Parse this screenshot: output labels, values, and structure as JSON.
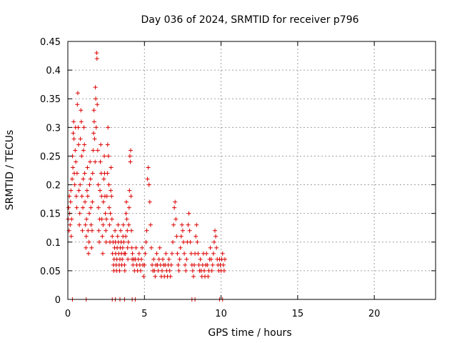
{
  "chart_data": {
    "type": "scatter",
    "title": "Day 036 of 2024, SRMTID for receiver p796",
    "xlabel": "GPS time / hours",
    "ylabel": "SRMTID / TECUs",
    "xlim": [
      0,
      24
    ],
    "ylim": [
      0,
      0.45
    ],
    "xticks": [
      0,
      5,
      10,
      15,
      20
    ],
    "yticks": [
      0,
      0.05,
      0.1,
      0.15,
      0.2,
      0.25,
      0.3,
      0.35,
      0.4,
      0.45
    ],
    "xtick_labels": [
      "0",
      "5",
      "10",
      "15",
      "20"
    ],
    "ytick_labels": [
      "0",
      "0.05",
      "0.1",
      "0.15",
      "0.2",
      "0.25",
      "0.3",
      "0.35",
      "0.4",
      "0.45"
    ],
    "grid": true,
    "marker": "+",
    "color": "#dd0000",
    "series": [
      {
        "name": "SRMTID",
        "points": [
          [
            0.02,
            0.14
          ],
          [
            0.05,
            0.16
          ],
          [
            0.08,
            0.12
          ],
          [
            0.1,
            0.18
          ],
          [
            0.12,
            0.15
          ],
          [
            0.15,
            0.13
          ],
          [
            0.18,
            0.17
          ],
          [
            0.2,
            0.19
          ],
          [
            0.22,
            0.11
          ],
          [
            0.25,
            0.14
          ],
          [
            0.28,
            0.21
          ],
          [
            0.3,
            0.25
          ],
          [
            0.33,
            0.23
          ],
          [
            0.35,
            0.29
          ],
          [
            0.38,
            0.31
          ],
          [
            0.4,
            0.28
          ],
          [
            0.42,
            0.22
          ],
          [
            0.45,
            0.2
          ],
          [
            0.48,
            0.26
          ],
          [
            0.5,
            0.3
          ],
          [
            0.52,
            0.24
          ],
          [
            0.55,
            0.18
          ],
          [
            0.58,
            0.16
          ],
          [
            0.6,
            0.22
          ],
          [
            0.62,
            0.34
          ],
          [
            0.65,
            0.36
          ],
          [
            0.68,
            0.3
          ],
          [
            0.7,
            0.27
          ],
          [
            0.72,
            0.19
          ],
          [
            0.75,
            0.13
          ],
          [
            0.78,
            0.15
          ],
          [
            0.8,
            0.2
          ],
          [
            0.82,
            0.28
          ],
          [
            0.85,
            0.33
          ],
          [
            0.88,
            0.31
          ],
          [
            0.9,
            0.25
          ],
          [
            0.92,
            0.18
          ],
          [
            0.95,
            0.12
          ],
          [
            0.98,
            0.16
          ],
          [
            1.0,
            0.21
          ],
          [
            1.02,
            0.26
          ],
          [
            1.05,
            0.3
          ],
          [
            1.08,
            0.27
          ],
          [
            1.1,
            0.22
          ],
          [
            1.12,
            0.17
          ],
          [
            1.15,
            0.13
          ],
          [
            1.18,
            0.09
          ],
          [
            1.2,
            0.11
          ],
          [
            1.22,
            0.14
          ],
          [
            1.25,
            0.19
          ],
          [
            1.28,
            0.23
          ],
          [
            1.3,
            0.18
          ],
          [
            1.32,
            0.12
          ],
          [
            1.35,
            0.08
          ],
          [
            1.38,
            0.1
          ],
          [
            1.4,
            0.15
          ],
          [
            1.42,
            0.2
          ],
          [
            1.45,
            0.24
          ],
          [
            1.48,
            0.21
          ],
          [
            1.5,
            0.16
          ],
          [
            1.52,
            0.13
          ],
          [
            1.55,
            0.09
          ],
          [
            1.58,
            0.12
          ],
          [
            1.6,
            0.17
          ],
          [
            1.62,
            0.22
          ],
          [
            1.65,
            0.26
          ],
          [
            1.68,
            0.29
          ],
          [
            1.7,
            0.33
          ],
          [
            1.72,
            0.31
          ],
          [
            1.75,
            0.28
          ],
          [
            1.78,
            0.24
          ],
          [
            1.8,
            0.37
          ],
          [
            1.82,
            0.35
          ],
          [
            1.85,
            0.3
          ],
          [
            1.88,
            0.43
          ],
          [
            1.9,
            0.42
          ],
          [
            1.92,
            0.34
          ],
          [
            1.95,
            0.26
          ],
          [
            1.98,
            0.2
          ],
          [
            2.0,
            0.16
          ],
          [
            2.02,
            0.12
          ],
          [
            2.05,
            0.1
          ],
          [
            2.08,
            0.14
          ],
          [
            2.1,
            0.19
          ],
          [
            2.12,
            0.24
          ],
          [
            2.15,
            0.27
          ],
          [
            2.18,
            0.22
          ],
          [
            2.2,
            0.18
          ],
          [
            2.22,
            0.14
          ],
          [
            2.25,
            0.11
          ],
          [
            2.28,
            0.08
          ],
          [
            2.3,
            0.13
          ],
          [
            2.32,
            0.17
          ],
          [
            2.35,
            0.21
          ],
          [
            2.38,
            0.25
          ],
          [
            2.4,
            0.22
          ],
          [
            2.42,
            0.18
          ],
          [
            2.45,
            0.15
          ],
          [
            2.48,
            0.12
          ],
          [
            2.5,
            0.1
          ],
          [
            2.52,
            0.14
          ],
          [
            2.55,
            0.18
          ],
          [
            2.58,
            0.22
          ],
          [
            2.6,
            0.27
          ],
          [
            2.62,
            0.3
          ],
          [
            2.65,
            0.25
          ],
          [
            2.68,
            0.2
          ],
          [
            2.7,
            0.16
          ],
          [
            2.72,
            0.13
          ],
          [
            2.75,
            0.1
          ],
          [
            2.78,
            0.15
          ],
          [
            2.8,
            0.19
          ],
          [
            2.82,
            0.23
          ],
          [
            2.85,
            0.18
          ],
          [
            2.88,
            0.14
          ],
          [
            2.9,
            0.11
          ],
          [
            2.92,
            0.08
          ],
          [
            2.95,
            0.1
          ],
          [
            2.98,
            0.06
          ],
          [
            3.0,
            0.05
          ],
          [
            3.02,
            0.07
          ],
          [
            3.05,
            0.09
          ],
          [
            3.08,
            0.12
          ],
          [
            3.1,
            0.1
          ],
          [
            3.12,
            0.08
          ],
          [
            3.15,
            0.06
          ],
          [
            3.18,
            0.05
          ],
          [
            3.2,
            0.07
          ],
          [
            3.22,
            0.09
          ],
          [
            3.25,
            0.11
          ],
          [
            3.28,
            0.13
          ],
          [
            3.3,
            0.1
          ],
          [
            3.32,
            0.08
          ],
          [
            3.35,
            0.06
          ],
          [
            3.38,
            0.05
          ],
          [
            3.4,
            0.07
          ],
          [
            3.42,
            0.09
          ],
          [
            3.45,
            0.12
          ],
          [
            3.48,
            0.1
          ],
          [
            3.5,
            0.08
          ],
          [
            3.52,
            0.06
          ],
          [
            3.55,
            0.07
          ],
          [
            3.58,
            0.09
          ],
          [
            3.6,
            0.11
          ],
          [
            3.62,
            0.13
          ],
          [
            3.65,
            0.1
          ],
          [
            3.68,
            0.08
          ],
          [
            3.7,
            0.06
          ],
          [
            3.72,
            0.05
          ],
          [
            3.75,
            0.08
          ],
          [
            3.78,
            0.11
          ],
          [
            3.8,
            0.15
          ],
          [
            3.82,
            0.17
          ],
          [
            3.85,
            0.14
          ],
          [
            3.88,
            0.12
          ],
          [
            3.9,
            0.09
          ],
          [
            3.92,
            0.07
          ],
          [
            3.95,
            0.1
          ],
          [
            3.98,
            0.13
          ],
          [
            4.0,
            0.16
          ],
          [
            4.02,
            0.19
          ],
          [
            4.05,
            0.25
          ],
          [
            4.08,
            0.24
          ],
          [
            4.1,
            0.26
          ],
          [
            4.12,
            0.18
          ],
          [
            4.15,
            0.12
          ],
          [
            4.18,
            0.09
          ],
          [
            4.2,
            0.07
          ],
          [
            4.22,
            0.08
          ],
          [
            4.25,
            0.06
          ],
          [
            4.3,
            0.07
          ],
          [
            4.35,
            0.05
          ],
          [
            4.4,
            0.07
          ],
          [
            4.45,
            0.09
          ],
          [
            4.5,
            0.06
          ],
          [
            4.55,
            0.05
          ],
          [
            4.6,
            0.07
          ],
          [
            4.65,
            0.08
          ],
          [
            4.7,
            0.06
          ],
          [
            4.75,
            0.05
          ],
          [
            4.8,
            0.07
          ],
          [
            4.85,
            0.09
          ],
          [
            4.9,
            0.06
          ],
          [
            4.95,
            0.04
          ],
          [
            5.0,
            0.06
          ],
          [
            5.05,
            0.08
          ],
          [
            5.1,
            0.1
          ],
          [
            5.15,
            0.12
          ],
          [
            5.2,
            0.21
          ],
          [
            5.25,
            0.23
          ],
          [
            5.3,
            0.2
          ],
          [
            5.35,
            0.17
          ],
          [
            5.4,
            0.13
          ],
          [
            5.45,
            0.09
          ],
          [
            5.5,
            0.06
          ],
          [
            5.55,
            0.05
          ],
          [
            5.6,
            0.07
          ],
          [
            5.65,
            0.05
          ],
          [
            5.7,
            0.04
          ],
          [
            5.75,
            0.06
          ],
          [
            5.8,
            0.08
          ],
          [
            5.85,
            0.06
          ],
          [
            5.9,
            0.05
          ],
          [
            5.95,
            0.07
          ],
          [
            6.0,
            0.09
          ],
          [
            6.05,
            0.06
          ],
          [
            6.1,
            0.04
          ],
          [
            6.15,
            0.05
          ],
          [
            6.2,
            0.07
          ],
          [
            6.25,
            0.06
          ],
          [
            6.3,
            0.04
          ],
          [
            6.35,
            0.06
          ],
          [
            6.4,
            0.08
          ],
          [
            6.45,
            0.05
          ],
          [
            6.5,
            0.04
          ],
          [
            6.55,
            0.06
          ],
          [
            6.6,
            0.07
          ],
          [
            6.65,
            0.05
          ],
          [
            6.7,
            0.04
          ],
          [
            6.75,
            0.06
          ],
          [
            6.8,
            0.08
          ],
          [
            6.85,
            0.1
          ],
          [
            6.9,
            0.13
          ],
          [
            6.95,
            0.16
          ],
          [
            7.0,
            0.17
          ],
          [
            7.05,
            0.14
          ],
          [
            7.1,
            0.11
          ],
          [
            7.15,
            0.08
          ],
          [
            7.2,
            0.06
          ],
          [
            7.25,
            0.05
          ],
          [
            7.3,
            0.07
          ],
          [
            7.35,
            0.09
          ],
          [
            7.4,
            0.11
          ],
          [
            7.45,
            0.13
          ],
          [
            7.5,
            0.12
          ],
          [
            7.55,
            0.1
          ],
          [
            7.6,
            0.08
          ],
          [
            7.65,
            0.06
          ],
          [
            7.7,
            0.05
          ],
          [
            7.75,
            0.07
          ],
          [
            7.8,
            0.1
          ],
          [
            7.85,
            0.13
          ],
          [
            7.9,
            0.15
          ],
          [
            7.95,
            0.12
          ],
          [
            8.0,
            0.1
          ],
          [
            8.05,
            0.08
          ],
          [
            8.1,
            0.06
          ],
          [
            8.15,
            0.05
          ],
          [
            8.2,
            0.04
          ],
          [
            8.25,
            0.06
          ],
          [
            8.3,
            0.08
          ],
          [
            8.35,
            0.11
          ],
          [
            8.4,
            0.13
          ],
          [
            8.45,
            0.1
          ],
          [
            8.5,
            0.08
          ],
          [
            8.55,
            0.06
          ],
          [
            8.6,
            0.05
          ],
          [
            8.65,
            0.07
          ],
          [
            8.7,
            0.05
          ],
          [
            8.75,
            0.04
          ],
          [
            8.8,
            0.06
          ],
          [
            8.85,
            0.08
          ],
          [
            8.9,
            0.05
          ],
          [
            8.95,
            0.04
          ],
          [
            9.0,
            0.06
          ],
          [
            9.05,
            0.08
          ],
          [
            9.1,
            0.06
          ],
          [
            9.15,
            0.04
          ],
          [
            9.2,
            0.05
          ],
          [
            9.25,
            0.07
          ],
          [
            9.3,
            0.09
          ],
          [
            9.35,
            0.07
          ],
          [
            9.4,
            0.05
          ],
          [
            9.45,
            0.06
          ],
          [
            9.5,
            0.08
          ],
          [
            9.55,
            0.1
          ],
          [
            9.6,
            0.12
          ],
          [
            9.65,
            0.11
          ],
          [
            9.7,
            0.09
          ],
          [
            9.75,
            0.07
          ],
          [
            9.8,
            0.06
          ],
          [
            9.85,
            0.05
          ],
          [
            9.9,
            0.07
          ],
          [
            9.95,
            0.06
          ],
          [
            10.0,
            0.05
          ],
          [
            10.05,
            0.07
          ],
          [
            10.1,
            0.08
          ],
          [
            10.15,
            0.06
          ],
          [
            10.2,
            0.05
          ],
          [
            10.25,
            0.07
          ]
        ]
      }
    ],
    "zero_points_x": [
      0.3,
      1.2,
      2.9,
      3.1,
      3.4,
      3.7,
      4.2,
      4.4,
      8.1,
      8.3,
      9.9,
      10.1
    ]
  }
}
